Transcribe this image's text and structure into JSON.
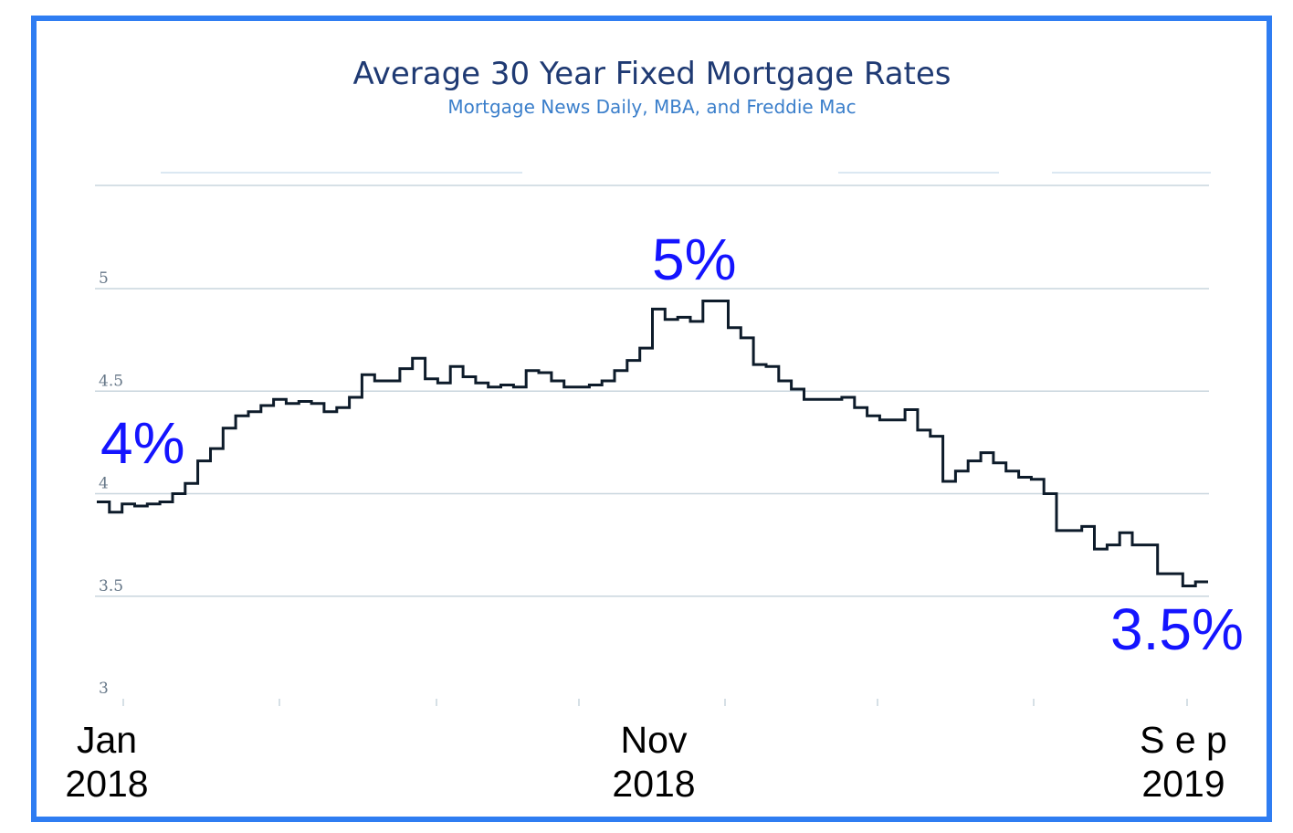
{
  "chart_data": {
    "type": "line",
    "title": "Average 30 Year Fixed Mortgage Rates",
    "subtitle": "Mortgage News Daily, MBA, and Freddie Mac",
    "xlabel": "",
    "ylabel": "",
    "ylim": [
      3,
      5.5
    ],
    "y_ticks": [
      {
        "value": 3,
        "label": "3"
      },
      {
        "value": 3.5,
        "label": "3.5"
      },
      {
        "value": 4,
        "label": "4"
      },
      {
        "value": 4.5,
        "label": "4.5"
      },
      {
        "value": 5,
        "label": "5"
      }
    ],
    "x_labels": [
      {
        "line1": "Jan",
        "line2": "2018"
      },
      {
        "line1": "Nov",
        "line2": "2018"
      },
      {
        "line1": "S e p",
        "line2": "2019"
      }
    ],
    "annotations": [
      "4%",
      "5%",
      "3.5%"
    ],
    "grid": true,
    "legend": "none",
    "series": [
      {
        "values": [
          3.96,
          3.91,
          3.95,
          3.94,
          3.95,
          3.96,
          4.0,
          4.05,
          4.16,
          4.22,
          4.32,
          4.38,
          4.4,
          4.43,
          4.46,
          4.44,
          4.45,
          4.44,
          4.4,
          4.42,
          4.47,
          4.58,
          4.55,
          4.55,
          4.61,
          4.66,
          4.56,
          4.54,
          4.62,
          4.57,
          4.54,
          4.52,
          4.53,
          4.52,
          4.6,
          4.59,
          4.55,
          4.52,
          4.52,
          4.53,
          4.55,
          4.6,
          4.65,
          4.71,
          4.9,
          4.85,
          4.86,
          4.84,
          4.94,
          4.94,
          4.81,
          4.76,
          4.63,
          4.62,
          4.55,
          4.51,
          4.46,
          4.46,
          4.46,
          4.47,
          4.42,
          4.38,
          4.36,
          4.36,
          4.41,
          4.31,
          4.28,
          4.06,
          4.11,
          4.16,
          4.2,
          4.15,
          4.11,
          4.08,
          4.07,
          4.0,
          3.82,
          3.82,
          3.84,
          3.73,
          3.75,
          3.81,
          3.75,
          3.75,
          3.61,
          3.61,
          3.55,
          3.57
        ]
      }
    ],
    "colors": {
      "frame": "#2f7df2",
      "series": "#0d1b2a",
      "title": "#1f3a73",
      "subtitle": "#3b7fcb",
      "annotation": "#1414ff",
      "grid": "#c9d6de"
    }
  }
}
